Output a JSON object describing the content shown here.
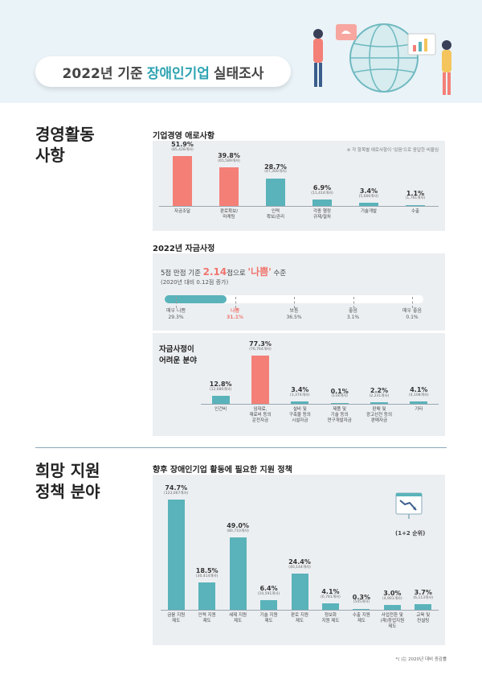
{
  "header": {
    "title_pre": "2022년 기준",
    "title_hl": "장애인기업",
    "title_post": "실태조사"
  },
  "sections": {
    "business": "경영활동\n사항",
    "policy": "희망 지원\n정책 분야"
  },
  "panel1": {
    "title": "기업경영 애로사항",
    "note": "※ 각 항목별 애로사항이 '있음'으로 응답한 비율임"
  },
  "panel2": {
    "title": "2022년 자금사정",
    "score_pre": "5점 만점 기준",
    "score_value": "2.14",
    "score_mid": "점으로",
    "score_grade": "'나쁨'",
    "score_post": "수준",
    "sub": "(2020년 대비 0.12점 증가)",
    "scale": [
      {
        "label": "매우 나쁨",
        "value": "29.3%",
        "active": false
      },
      {
        "label": "나쁨",
        "value": "31.1%",
        "active": true
      },
      {
        "label": "보통",
        "value": "36.5%",
        "active": false
      },
      {
        "label": "좋음",
        "value": "3.1%",
        "active": false
      },
      {
        "label": "매우 좋음",
        "value": "0.1%",
        "active": false
      }
    ],
    "fill_fraction": 0.24,
    "difficulty_title": "자금사정이\n어려운 분야"
  },
  "panel3": {
    "title": "향후 장애인기업 활동에 필요한 지원 정책",
    "rank_label": "(1+2 순위)",
    "footnote": "*( )는 2020년 대비 증감률"
  },
  "colors": {
    "teal": "#5ab3ba",
    "coral": "#f47f77",
    "panel": "#eceff2"
  },
  "chart_data": [
    {
      "type": "bar",
      "title": "기업경영 애로사항",
      "categories": [
        "자금조달",
        "판로확보/\n마케팅",
        "인력\n확보/관리",
        "각종 행정\n규제/절차",
        "기술개발",
        "수출"
      ],
      "values": [
        51.9,
        39.8,
        28.7,
        6.9,
        3.4,
        1.1
      ],
      "value_labels": [
        "51.9%",
        "39.8%",
        "28.7%",
        "6.9%",
        "3.4%",
        "1.1%"
      ],
      "counts": [
        "(85,428개사)",
        "(65,589개사)",
        "(47,300개사)",
        "(11,414개사)",
        "(5,600개사)",
        "(1,761개사)"
      ],
      "highlight": [
        0,
        1
      ],
      "ylim": [
        0,
        55
      ]
    },
    {
      "type": "bar",
      "title": "자금사정이 어려운 분야",
      "categories": [
        "인건비",
        "임대료,\n재료비 등의\n운전자금",
        "설비 및\n구축물 등의\n시설자금",
        "제품 및\n기술 등의\n연구개발자금",
        "판매 및\n광고선전 등의\n판매자금",
        "기타"
      ],
      "values": [
        12.8,
        77.3,
        3.4,
        0.1,
        2.2,
        4.1
      ],
      "value_labels": [
        "12.8%",
        "77.3%",
        "3.4%",
        "0.1%",
        "2.2%",
        "4.1%"
      ],
      "counts": [
        "(12,680개사)",
        "(76,764개사)",
        "(3,374개사)",
        "(118개사)",
        "(2,231개사)",
        "(4,108개사)"
      ],
      "highlight": [
        1
      ],
      "ylim": [
        0,
        80
      ]
    },
    {
      "type": "bar",
      "title": "향후 장애인기업 활동에 필요한 지원 정책",
      "categories": [
        "금융 지원\n제도",
        "인력 지원\n제도",
        "세제 지원\n제도",
        "기술 지원\n제도",
        "판로 지원\n제도",
        "정보화\n지원 제도",
        "수출 지원\n제도",
        "사업전환 및\n(재)창업지원\n제도",
        "교육 및\n컨설팅"
      ],
      "values": [
        74.7,
        18.5,
        49.0,
        6.4,
        24.4,
        4.1,
        0.3,
        3.0,
        3.7
      ],
      "value_labels": [
        "74.7%",
        "18.5%",
        "49.0%",
        "6.4%",
        "24.4%",
        "4.1%",
        "0.3%",
        "3.0%",
        "3.7%"
      ],
      "counts": [
        "(123,067개사)",
        "(30,414개사)",
        "(80,710개사)",
        "(10,591개사)",
        "(40,144개사)",
        "(6,781개사)",
        "(545개사)",
        "(4,901개사)",
        "(6,113개사)"
      ],
      "highlight": [],
      "ylim": [
        0,
        80
      ]
    }
  ]
}
